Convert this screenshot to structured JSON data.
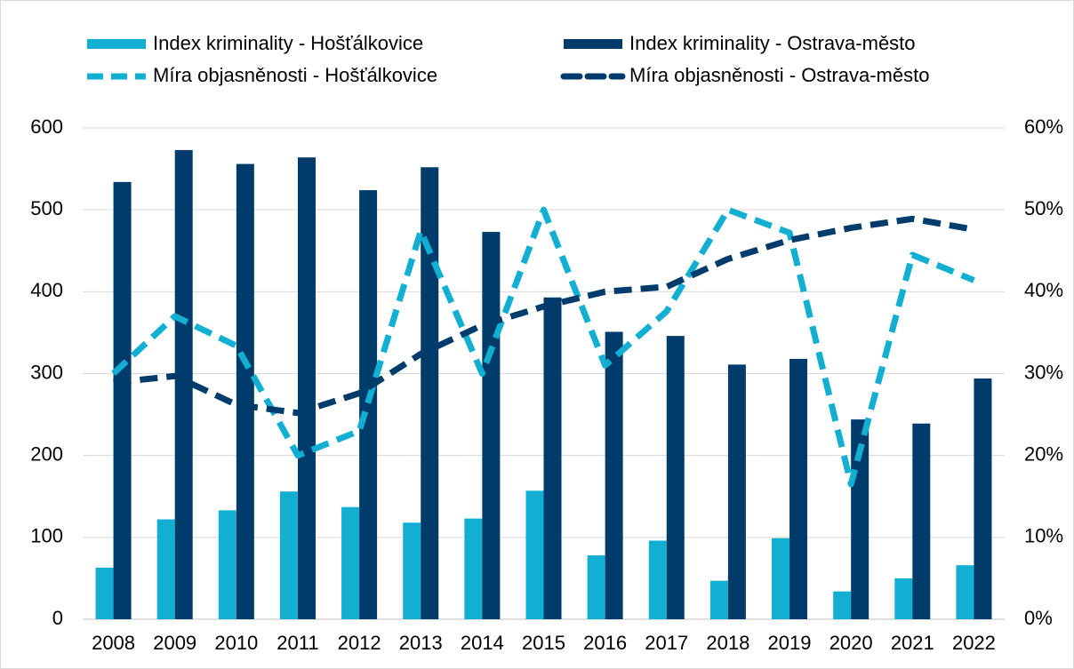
{
  "chart_data": {
    "type": "bar",
    "categories": [
      "2008",
      "2009",
      "2010",
      "2011",
      "2012",
      "2013",
      "2014",
      "2015",
      "2016",
      "2017",
      "2018",
      "2019",
      "2020",
      "2021",
      "2022"
    ],
    "series": [
      {
        "name": "Index kriminality - Hošťálkovice",
        "type": "bar",
        "color": "#12afd2",
        "values": [
          63,
          122,
          133,
          156,
          137,
          118,
          123,
          157,
          78,
          96,
          47,
          99,
          34,
          50,
          66
        ]
      },
      {
        "name": "Index kriminality - Ostrava-město",
        "type": "bar",
        "color": "#003c6b",
        "values": [
          534,
          573,
          556,
          564,
          524,
          552,
          473,
          393,
          351,
          346,
          311,
          318,
          244,
          239,
          294
        ]
      },
      {
        "name": "Míra objasněnosti - Hošťálkovice",
        "type": "line",
        "axis": "y2",
        "color": "#12afd2",
        "values": [
          30,
          37,
          33.4,
          20,
          23,
          47.4,
          30,
          50,
          31,
          37.6,
          50,
          47.2,
          16.5,
          44.5,
          41.4
        ]
      },
      {
        "name": "Míra objasněnosti - Ostrava-město",
        "type": "line",
        "axis": "y2",
        "color": "#003c6b",
        "values": [
          28.9,
          29.7,
          26.2,
          25.2,
          27.6,
          32.4,
          35.9,
          38.2,
          40,
          40.6,
          44,
          46.3,
          47.8,
          48.9,
          47.6
        ]
      }
    ],
    "ylim": [
      0,
      600
    ],
    "yticks": [
      0,
      100,
      200,
      300,
      400,
      500,
      600
    ],
    "y2lim": [
      0,
      60
    ],
    "y2ticks": [
      {
        "value": 0,
        "label": "0%"
      },
      {
        "value": 10,
        "label": "10%"
      },
      {
        "value": 20,
        "label": "20%"
      },
      {
        "value": 30,
        "label": "30%"
      },
      {
        "value": 40,
        "label": "40%"
      },
      {
        "value": 50,
        "label": "50%"
      },
      {
        "value": 60,
        "label": "60%"
      }
    ],
    "grid": true
  }
}
